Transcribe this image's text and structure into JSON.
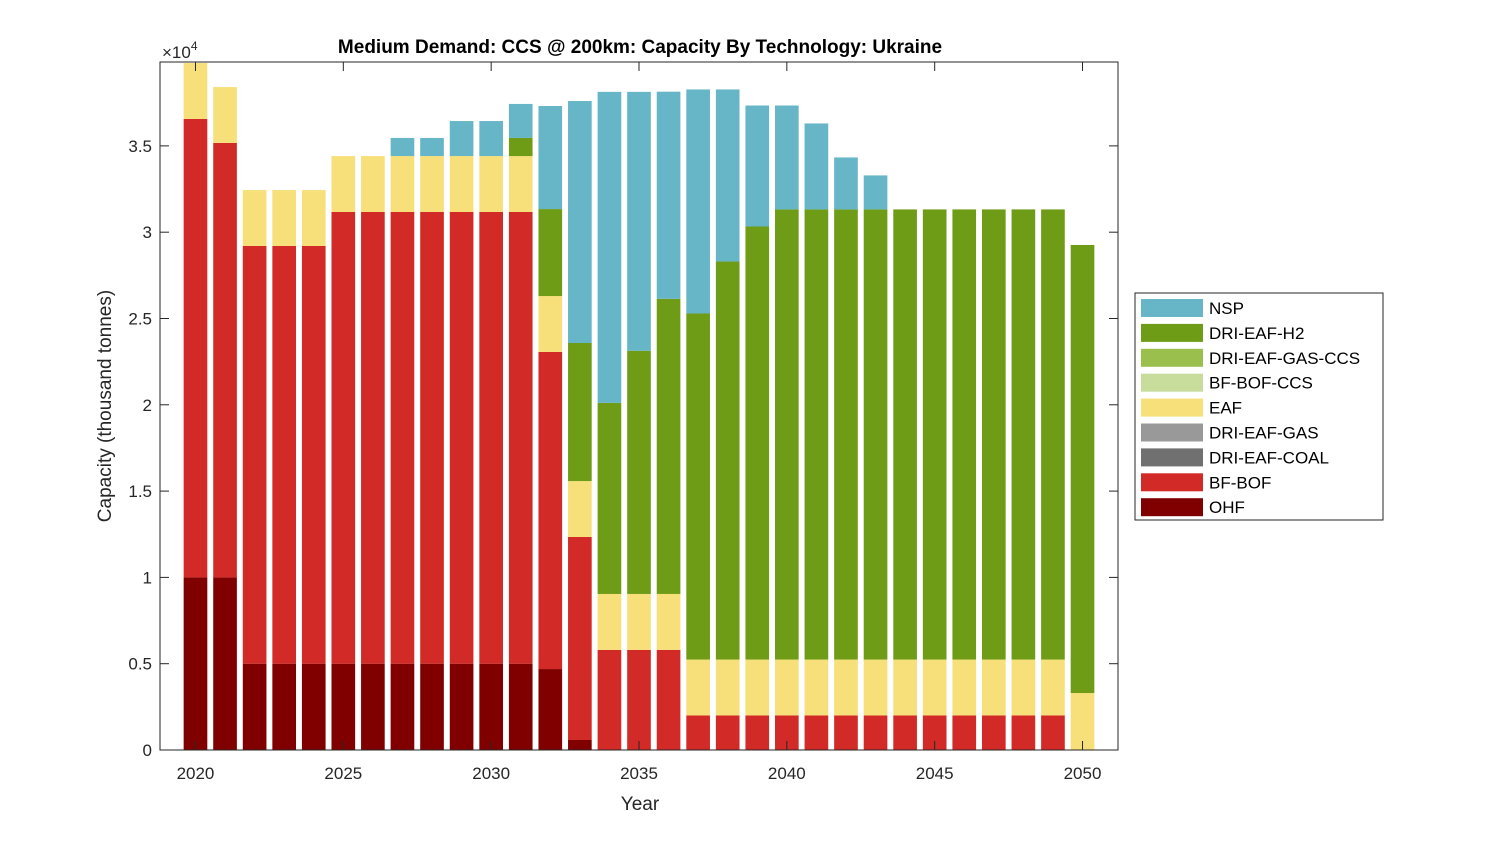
{
  "chart_data": {
    "type": "bar",
    "stacked": true,
    "title": "Medium Demand: CCS @ 200km: Capacity By Technology: Ukraine",
    "xlabel": "Year",
    "ylabel": "Capacity (thousand tonnes)",
    "y_exponent_label": "×10",
    "y_exponent": "4",
    "xlim": [
      2018.8,
      2051.2
    ],
    "ylim": [
      0,
      39860
    ],
    "xticks": [
      2020,
      2025,
      2030,
      2035,
      2040,
      2045,
      2050
    ],
    "yticks": [
      0,
      5000,
      10000,
      15000,
      20000,
      25000,
      30000,
      35000
    ],
    "ytick_labels": [
      "0",
      "0.5",
      "1",
      "1.5",
      "2",
      "2.5",
      "3",
      "3.5"
    ],
    "grid": false,
    "legend_placement": "outside-right",
    "x": [
      2020,
      2021,
      2022,
      2023,
      2024,
      2025,
      2026,
      2027,
      2028,
      2029,
      2030,
      2031,
      2032,
      2033,
      2034,
      2035,
      2036,
      2037,
      2038,
      2039,
      2040,
      2041,
      2042,
      2043,
      2044,
      2045,
      2046,
      2047,
      2048,
      2049,
      2050
    ],
    "series": [
      {
        "name": "OHF",
        "color": "#800000",
        "values": [
          10000,
          10000,
          5000,
          5000,
          5000,
          5000,
          5000,
          5000,
          5000,
          5000,
          5000,
          5000,
          4690,
          580,
          0,
          0,
          0,
          0,
          0,
          0,
          0,
          0,
          0,
          0,
          0,
          0,
          0,
          0,
          0,
          0,
          0
        ]
      },
      {
        "name": "BF-BOF",
        "color": "#d22a26",
        "values": [
          26560,
          25170,
          24200,
          24200,
          24200,
          26170,
          26170,
          26170,
          26170,
          26170,
          26170,
          26170,
          18370,
          11760,
          5800,
          5800,
          5800,
          2000,
          2000,
          2000,
          2000,
          2000,
          2000,
          2000,
          2000,
          2000,
          2000,
          2000,
          2000,
          2000,
          0
        ]
      },
      {
        "name": "DRI-EAF-COAL",
        "color": "#707070",
        "values": [
          0,
          0,
          0,
          0,
          0,
          0,
          0,
          0,
          0,
          0,
          0,
          0,
          0,
          0,
          0,
          0,
          0,
          0,
          0,
          0,
          0,
          0,
          0,
          0,
          0,
          0,
          0,
          0,
          0,
          0,
          0
        ]
      },
      {
        "name": "DRI-EAF-GAS",
        "color": "#999999",
        "values": [
          0,
          0,
          0,
          0,
          0,
          0,
          0,
          0,
          0,
          0,
          0,
          0,
          0,
          0,
          0,
          0,
          0,
          0,
          0,
          0,
          0,
          0,
          0,
          0,
          0,
          0,
          0,
          0,
          0,
          0,
          0
        ]
      },
      {
        "name": "EAF",
        "color": "#f7df7a",
        "values": [
          3240,
          3240,
          3240,
          3240,
          3240,
          3240,
          3240,
          3240,
          3240,
          3240,
          3240,
          3240,
          3240,
          3240,
          3240,
          3240,
          3240,
          3240,
          3240,
          3240,
          3240,
          3240,
          3240,
          3240,
          3240,
          3240,
          3240,
          3240,
          3240,
          3240,
          3300
        ]
      },
      {
        "name": "BF-BOF-CCS",
        "color": "#c8dc9c",
        "values": [
          0,
          0,
          0,
          0,
          0,
          0,
          0,
          0,
          0,
          0,
          0,
          0,
          0,
          0,
          0,
          0,
          0,
          0,
          0,
          0,
          0,
          0,
          0,
          0,
          0,
          0,
          0,
          0,
          0,
          0,
          0
        ]
      },
      {
        "name": "DRI-EAF-GAS-CCS",
        "color": "#9bbf4c",
        "values": [
          0,
          0,
          0,
          0,
          0,
          0,
          0,
          0,
          0,
          0,
          0,
          0,
          0,
          0,
          0,
          0,
          0,
          0,
          0,
          0,
          0,
          0,
          0,
          0,
          0,
          0,
          0,
          0,
          0,
          0,
          0
        ]
      },
      {
        "name": "DRI-EAF-H2",
        "color": "#6f9c17",
        "values": [
          0,
          0,
          0,
          0,
          0,
          0,
          0,
          0,
          0,
          0,
          0,
          1050,
          5040,
          8000,
          11070,
          14090,
          17100,
          20050,
          23060,
          25090,
          26080,
          26080,
          26080,
          26080,
          26080,
          26080,
          26080,
          26080,
          26080,
          26080,
          25960
        ]
      },
      {
        "name": "NSP",
        "color": "#67b6c7",
        "values": [
          0,
          0,
          0,
          0,
          0,
          0,
          0,
          1050,
          1050,
          2030,
          2030,
          1970,
          5970,
          14020,
          18020,
          15000,
          12000,
          12980,
          9970,
          7010,
          6020,
          4980,
          3010,
          1970,
          0,
          0,
          0,
          0,
          0,
          0,
          0
        ]
      }
    ],
    "legend_order": [
      "NSP",
      "DRI-EAF-H2",
      "DRI-EAF-GAS-CCS",
      "BF-BOF-CCS",
      "EAF",
      "DRI-EAF-GAS",
      "DRI-EAF-COAL",
      "BF-BOF",
      "OHF"
    ]
  }
}
